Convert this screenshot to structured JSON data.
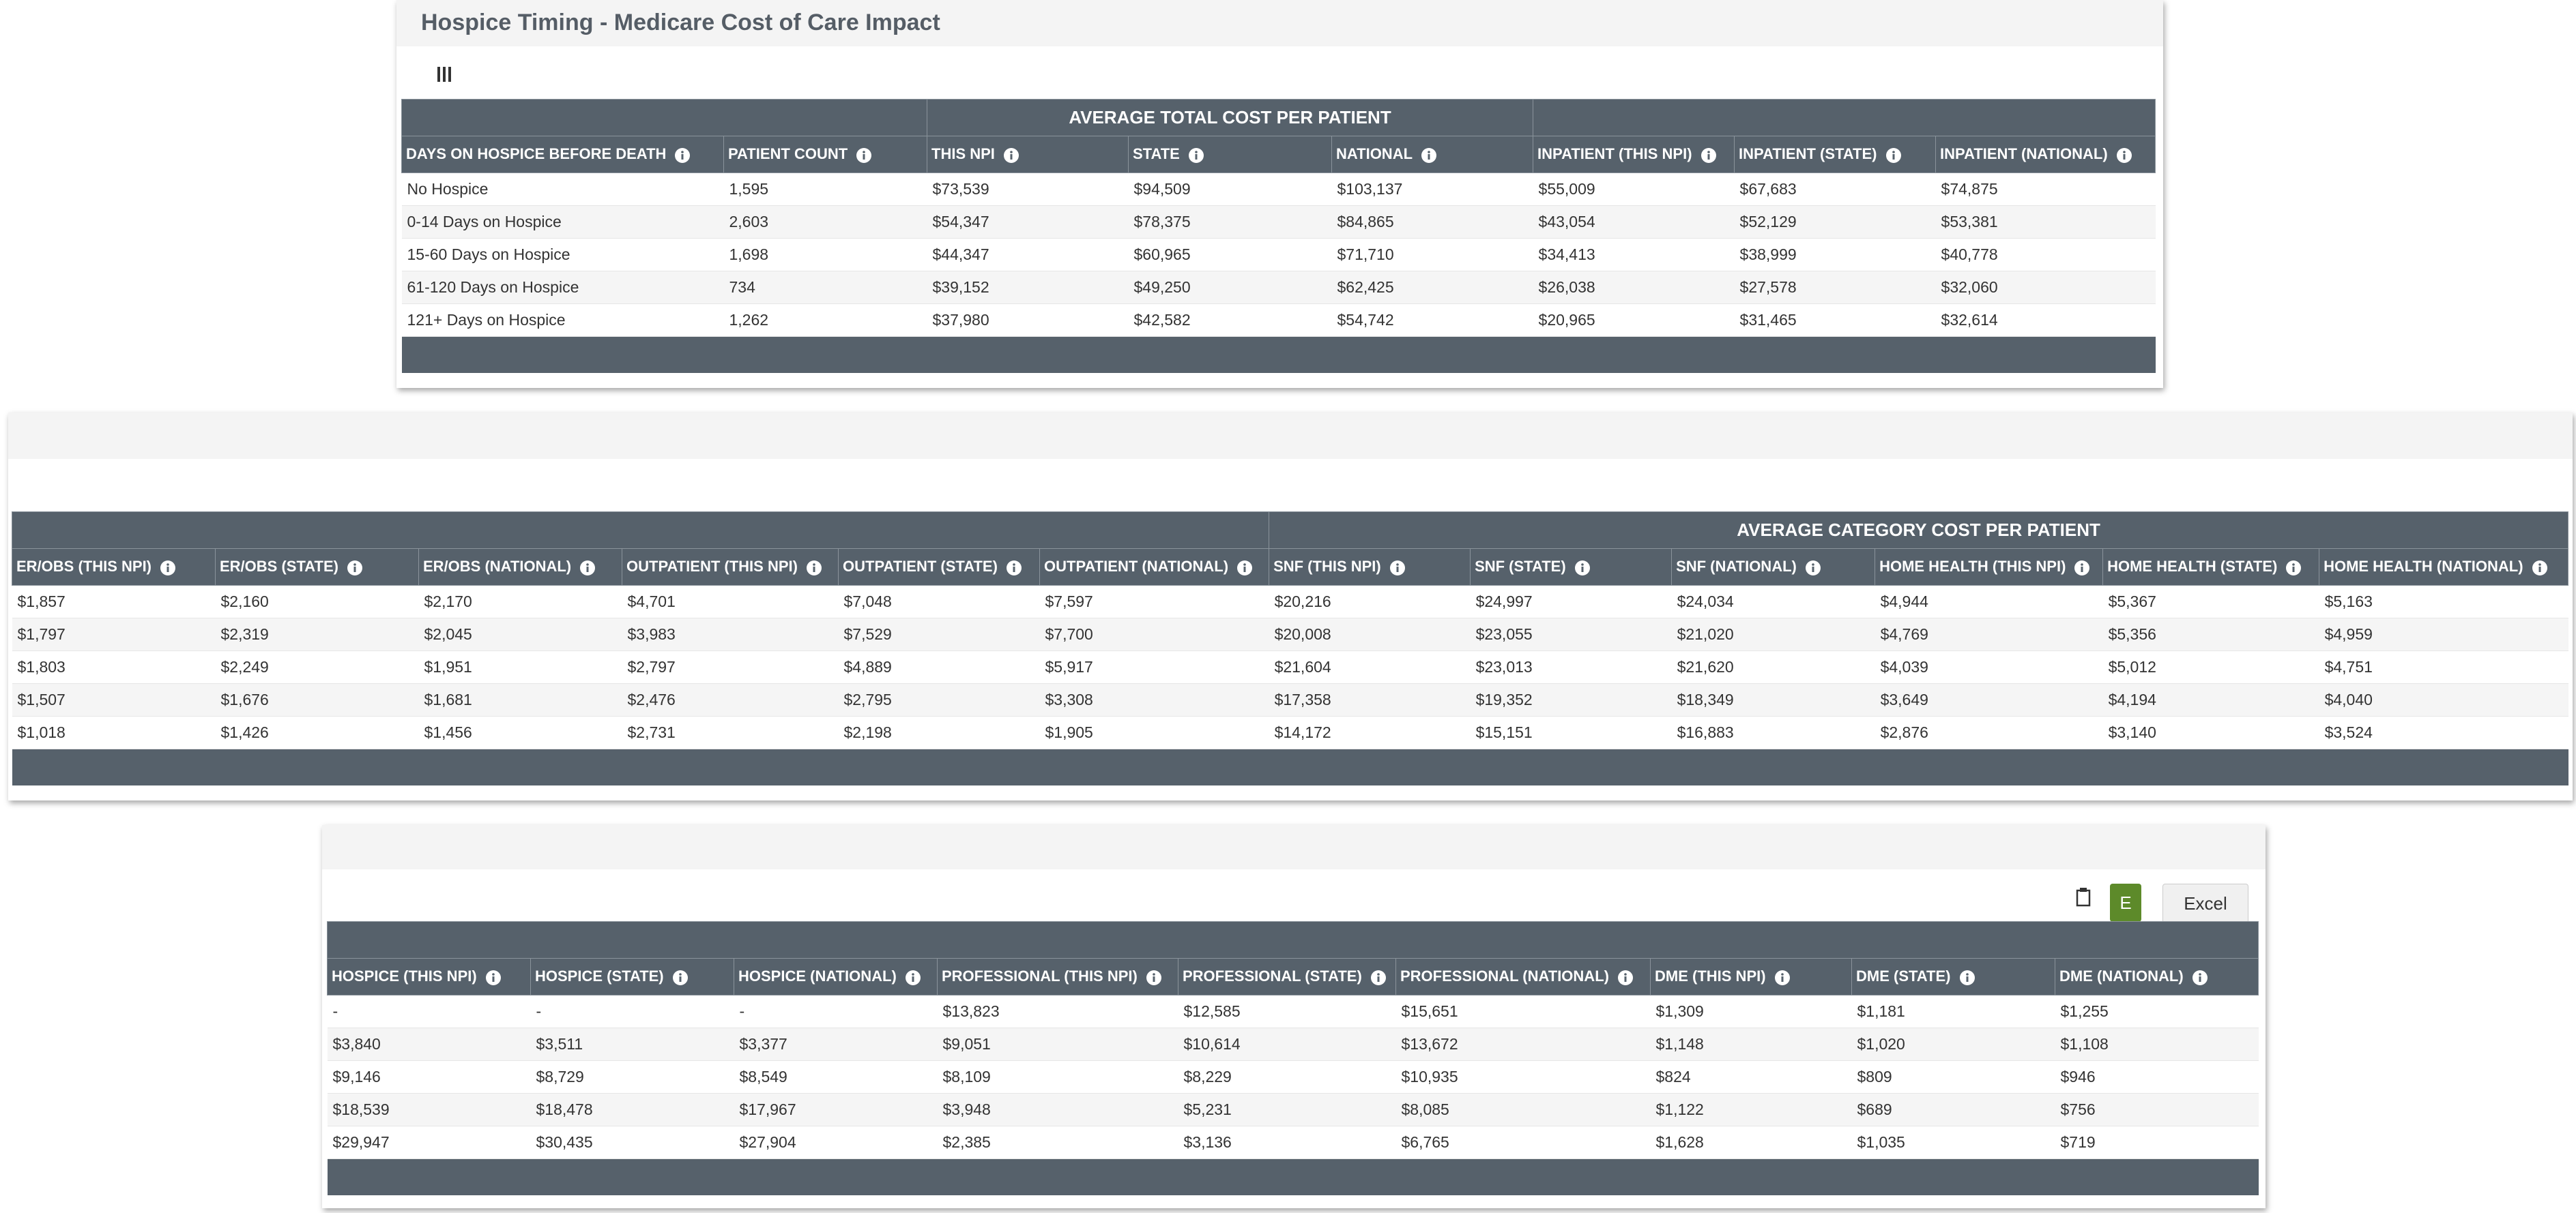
{
  "title": "Hospice Timing - Medicare Cost of Care Impact",
  "table1": {
    "group": "AVERAGE TOTAL COST PER PATIENT",
    "columns": [
      "DAYS ON HOSPICE BEFORE DEATH",
      "PATIENT COUNT",
      "THIS NPI",
      "STATE",
      "NATIONAL",
      "INPATIENT (THIS NPI)",
      "INPATIENT (STATE)",
      "INPATIENT (NATIONAL)"
    ],
    "rows": [
      [
        "No Hospice",
        "1,595",
        "$73,539",
        "$94,509",
        "$103,137",
        "$55,009",
        "$67,683",
        "$74,875"
      ],
      [
        "0-14 Days on Hospice",
        "2,603",
        "$54,347",
        "$78,375",
        "$84,865",
        "$43,054",
        "$52,129",
        "$53,381"
      ],
      [
        "15-60 Days on Hospice",
        "1,698",
        "$44,347",
        "$60,965",
        "$71,710",
        "$34,413",
        "$38,999",
        "$40,778"
      ],
      [
        "61-120 Days on Hospice",
        "734",
        "$39,152",
        "$49,250",
        "$62,425",
        "$26,038",
        "$27,578",
        "$32,060"
      ],
      [
        "121+ Days on Hospice",
        "1,262",
        "$37,980",
        "$42,582",
        "$54,742",
        "$20,965",
        "$31,465",
        "$32,614"
      ]
    ]
  },
  "table2": {
    "group": "AVERAGE CATEGORY COST PER PATIENT",
    "columns": [
      "ER/OBS (THIS NPI)",
      "ER/OBS (STATE)",
      "ER/OBS (NATIONAL)",
      "OUTPATIENT (THIS NPI)",
      "OUTPATIENT (STATE)",
      "OUTPATIENT (NATIONAL)",
      "SNF (THIS NPI)",
      "SNF (STATE)",
      "SNF (NATIONAL)",
      "HOME HEALTH (THIS NPI)",
      "HOME HEALTH (STATE)",
      "HOME HEALTH (NATIONAL)"
    ],
    "rows": [
      [
        "$1,857",
        "$2,160",
        "$2,170",
        "$4,701",
        "$7,048",
        "$7,597",
        "$20,216",
        "$24,997",
        "$24,034",
        "$4,944",
        "$5,367",
        "$5,163"
      ],
      [
        "$1,797",
        "$2,319",
        "$2,045",
        "$3,983",
        "$7,529",
        "$7,700",
        "$20,008",
        "$23,055",
        "$21,020",
        "$4,769",
        "$5,356",
        "$4,959"
      ],
      [
        "$1,803",
        "$2,249",
        "$1,951",
        "$2,797",
        "$4,889",
        "$5,917",
        "$21,604",
        "$23,013",
        "$21,620",
        "$4,039",
        "$5,012",
        "$4,751"
      ],
      [
        "$1,507",
        "$1,676",
        "$1,681",
        "$2,476",
        "$2,795",
        "$3,308",
        "$17,358",
        "$19,352",
        "$18,349",
        "$3,649",
        "$4,194",
        "$4,040"
      ],
      [
        "$1,018",
        "$1,426",
        "$1,456",
        "$2,731",
        "$2,198",
        "$1,905",
        "$14,172",
        "$15,151",
        "$16,883",
        "$2,876",
        "$3,140",
        "$3,524"
      ]
    ]
  },
  "table3": {
    "buttons": [
      "E",
      "Excel"
    ],
    "columns": [
      "HOSPICE (THIS NPI)",
      "HOSPICE (STATE)",
      "HOSPICE (NATIONAL)",
      "PROFESSIONAL (THIS NPI)",
      "PROFESSIONAL (STATE)",
      "PROFESSIONAL (NATIONAL)",
      "DME (THIS NPI)",
      "DME (STATE)",
      "DME (NATIONAL)"
    ],
    "rows": [
      [
        "-",
        "-",
        "-",
        "$13,823",
        "$12,585",
        "$15,651",
        "$1,309",
        "$1,181",
        "$1,255"
      ],
      [
        "$3,840",
        "$3,511",
        "$3,377",
        "$9,051",
        "$10,614",
        "$13,672",
        "$1,148",
        "$1,020",
        "$1,108"
      ],
      [
        "$9,146",
        "$8,729",
        "$8,549",
        "$8,109",
        "$8,229",
        "$10,935",
        "$824",
        "$809",
        "$946"
      ],
      [
        "$18,539",
        "$18,478",
        "$17,967",
        "$3,948",
        "$5,231",
        "$8,085",
        "$1,122",
        "$689",
        "$756"
      ],
      [
        "$29,947",
        "$30,435",
        "$27,904",
        "$2,385",
        "$3,136",
        "$6,765",
        "$1,628",
        "$1,035",
        "$719"
      ]
    ]
  }
}
